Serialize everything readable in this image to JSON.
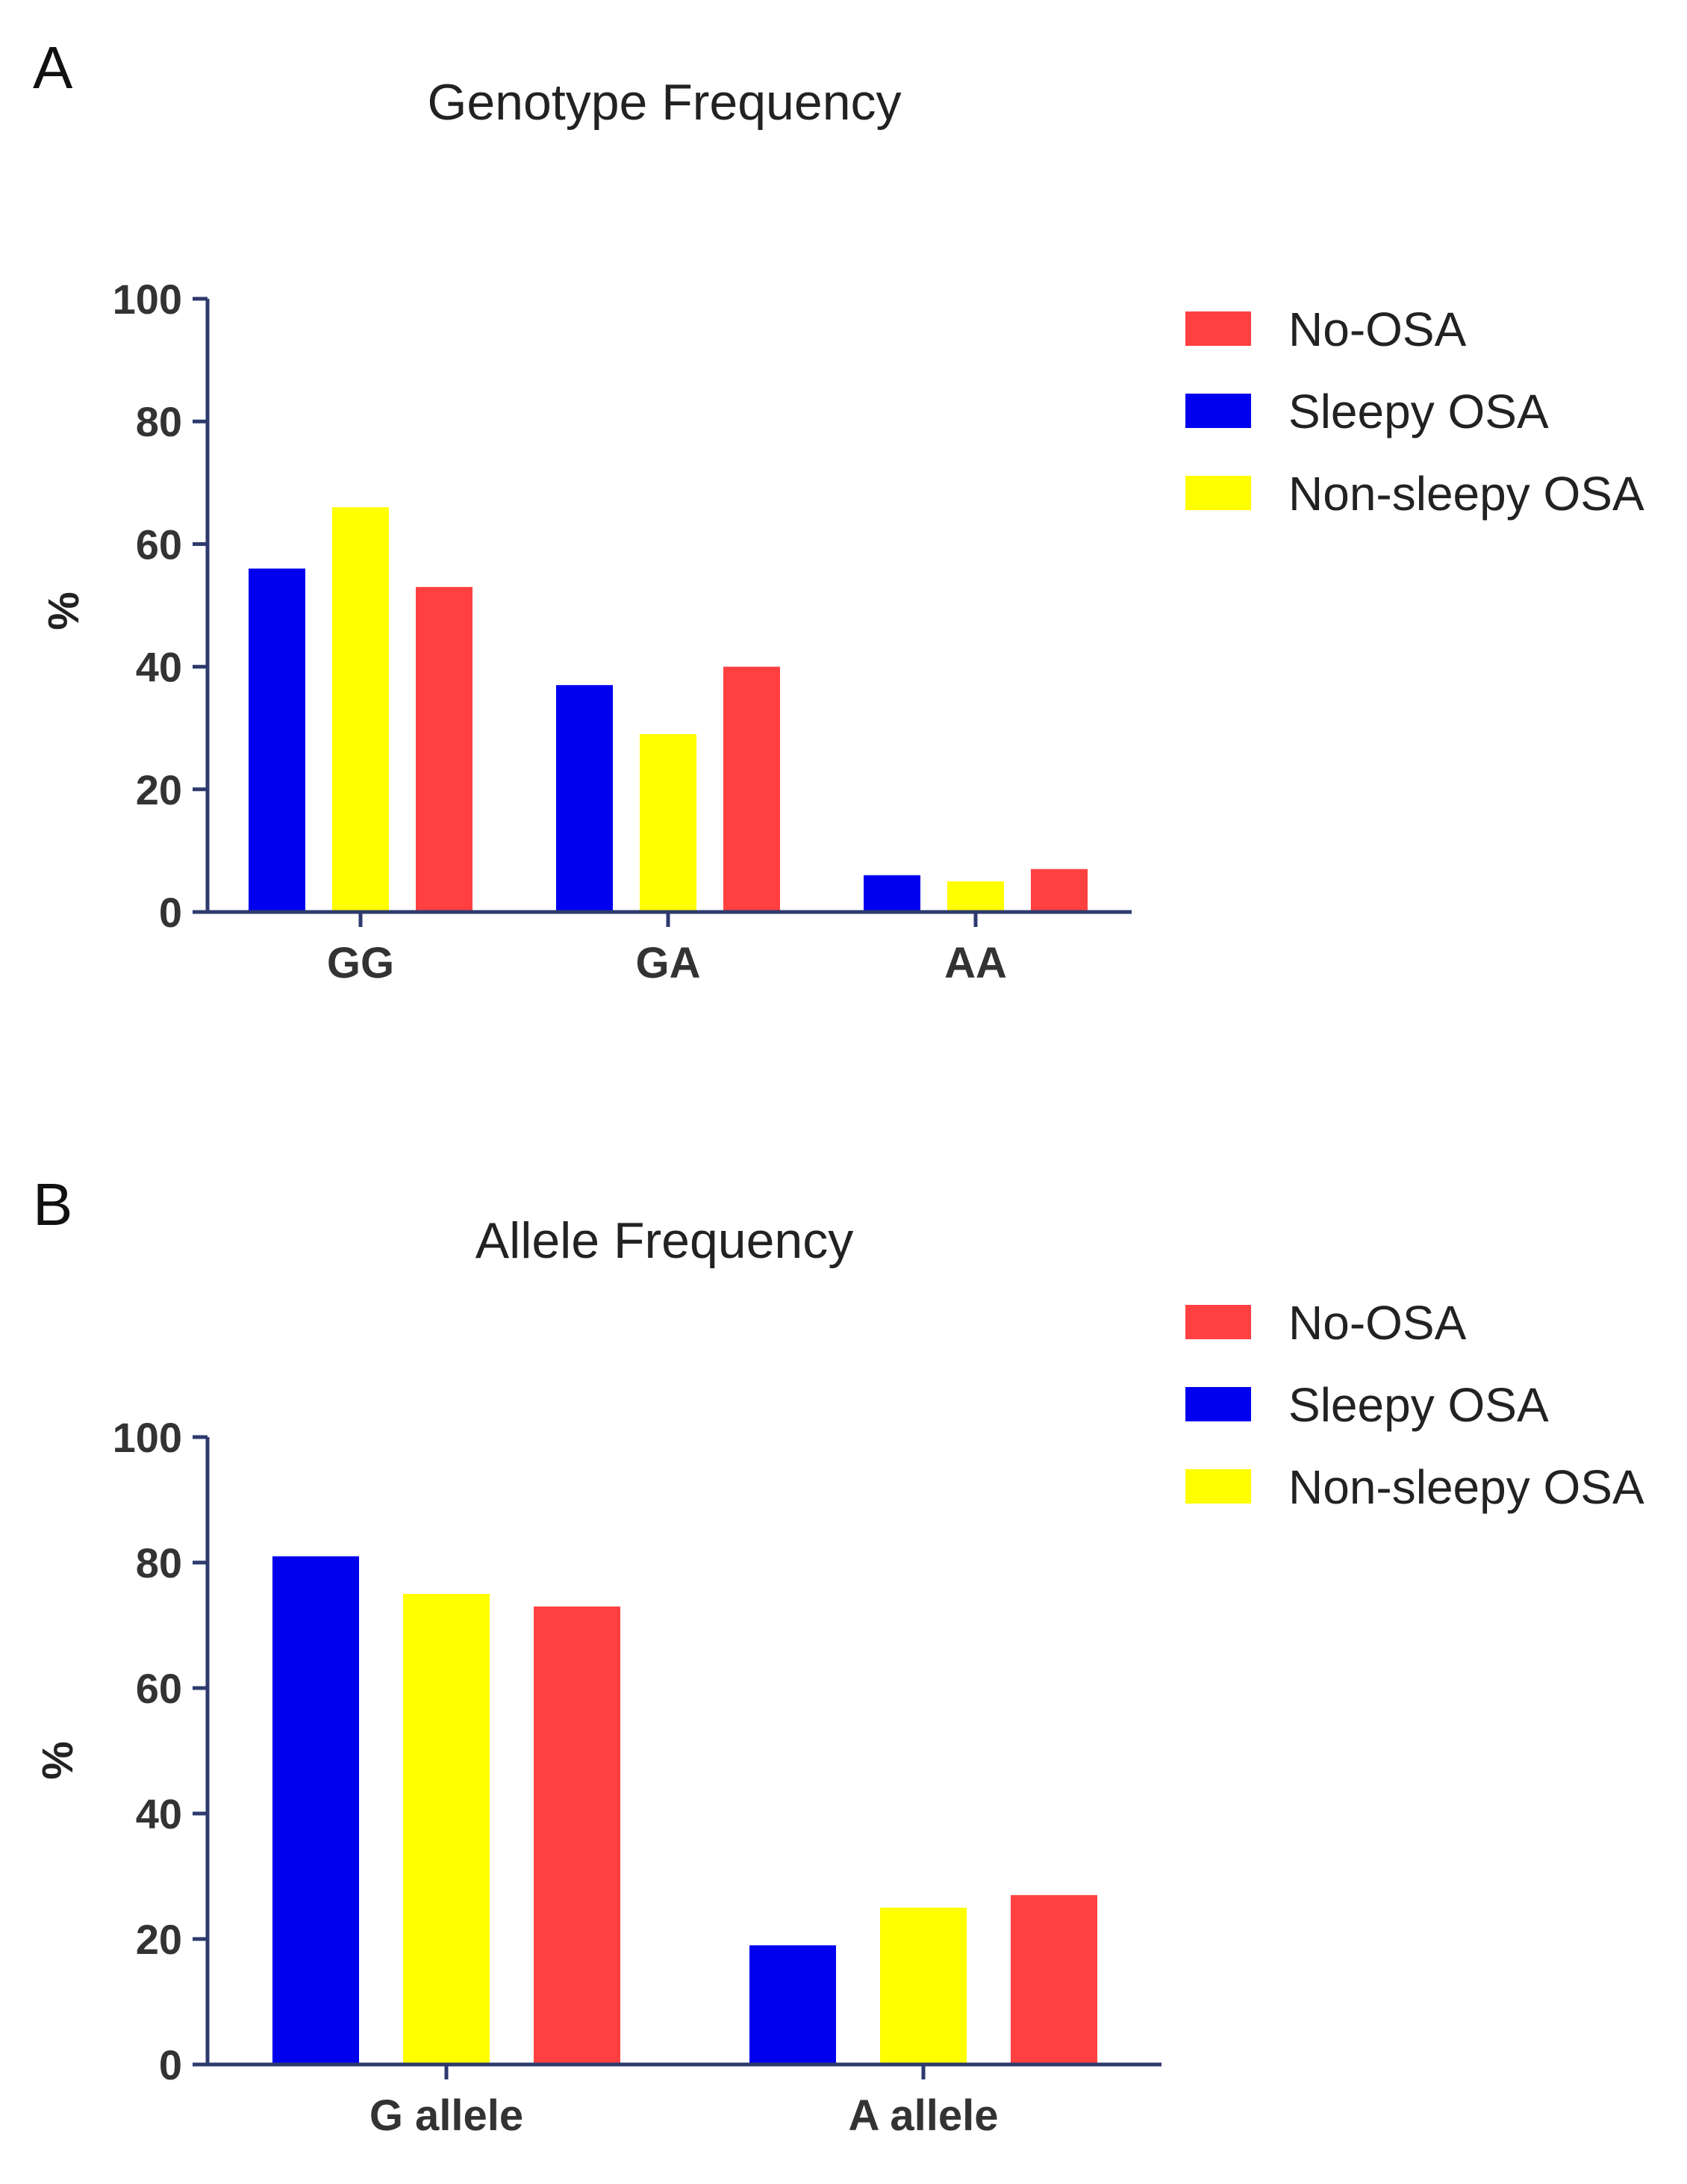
{
  "colors": {
    "no_osa": "#ff4040",
    "sleepy_osa": "#0000ee",
    "non_sleepy_osa": "#ffff00",
    "axis": "#2e3a6e"
  },
  "chart_data": [
    {
      "panel": "A",
      "type": "bar",
      "title": "Genotype Frequency",
      "xlabel": "",
      "ylabel": "%",
      "ylim": [
        0,
        100
      ],
      "yticks": [
        "0",
        "20",
        "40",
        "60",
        "80",
        "100"
      ],
      "categories": [
        "GG",
        "GA",
        "AA"
      ],
      "legend": [
        "No-OSA",
        "Sleepy OSA",
        "Non-sleepy OSA"
      ],
      "legend_position": "top-right",
      "series": [
        {
          "name": "Sleepy OSA",
          "color_key": "sleepy_osa",
          "values": [
            56,
            37,
            6
          ]
        },
        {
          "name": "Non-sleepy OSA",
          "color_key": "non_sleepy_osa",
          "values": [
            66,
            29,
            5
          ]
        },
        {
          "name": "No-OSA",
          "color_key": "no_osa",
          "values": [
            53,
            40,
            7
          ]
        }
      ]
    },
    {
      "panel": "B",
      "type": "bar",
      "title": "Allele Frequency",
      "xlabel": "",
      "ylabel": "%",
      "ylim": [
        0,
        100
      ],
      "yticks": [
        "0",
        "20",
        "40",
        "60",
        "80",
        "100"
      ],
      "categories": [
        "G allele",
        "A allele"
      ],
      "legend": [
        "No-OSA",
        "Sleepy OSA",
        "Non-sleepy OSA"
      ],
      "legend_position": "top-right",
      "series": [
        {
          "name": "Sleepy OSA",
          "color_key": "sleepy_osa",
          "values": [
            81,
            19
          ]
        },
        {
          "name": "Non-sleepy OSA",
          "color_key": "non_sleepy_osa",
          "values": [
            75,
            25
          ]
        },
        {
          "name": "No-OSA",
          "color_key": "no_osa",
          "values": [
            73,
            27
          ]
        }
      ]
    }
  ]
}
